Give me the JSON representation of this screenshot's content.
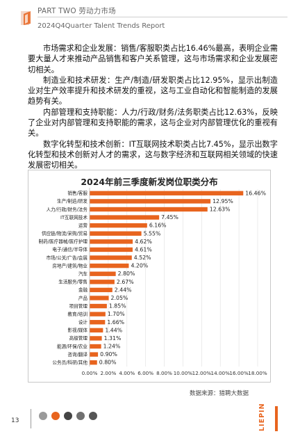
{
  "header": {
    "line1": "PART TWO 劳动力市场",
    "line2": "2024Q4Quarter Talent Trends Report"
  },
  "paragraphs": [
    "市场需求和企业发展：销售/客服职类占比16.46%最高，表明企业需要大量人才来推动产品销售和客户关系管理，这与市场需求和企业发展密切相关。",
    "制造业和技术研发：生产/制造/研发职类占比12.95%，显示出制造业对生产效率提升和技术研发的重视，这与工业自动化和智能制造的发展趋势有关。",
    "内部管理和支持职能：人力/行政/财务/法务职类占比12.63%，反映了企业对内部管理和支持职能的需求，这与企业对内部管理优化的重视有关。",
    "数字化转型和技术创新：IT互联网技术职类占比7.45%，显示出数字化转型和技术创新对人才的需求，这与数字经济和互联网相关领域的快速发展密切相关。"
  ],
  "chart_data": {
    "type": "bar",
    "orientation": "horizontal",
    "title": "2024年前三季度新发岗位职类分布",
    "categories": [
      "销售/客服",
      "生产/制造/研发",
      "人力/行政/财务/法务",
      "IT互联网技术",
      "运营",
      "供应链/物流/采购/贸易",
      "制药/医疗器械/医疗护理",
      "电子/通信/半导体",
      "市场/公关/广告/会展",
      "房地产/建筑/物业",
      "汽车",
      "生活服务/零售",
      "金融",
      "产品",
      "项目管理",
      "教育/培训",
      "设计",
      "影视/媒体",
      "高级管理",
      "能源/环保/农业",
      "咨询/翻译",
      "公务员/科研/其他"
    ],
    "values": [
      16.46,
      12.95,
      12.63,
      7.45,
      6.16,
      5.55,
      4.62,
      4.61,
      4.52,
      4.2,
      2.8,
      2.67,
      2.44,
      2.05,
      1.85,
      1.7,
      1.66,
      1.44,
      1.31,
      1.24,
      0.9,
      0.8
    ],
    "labels": [
      "16.46%",
      "12.95%",
      "12.63%",
      "7.45%",
      "6.16%",
      "5.55%",
      "4.62%",
      "4.61%",
      "4.52%",
      "4.20%",
      "2.80%",
      "2.67%",
      "2.44%",
      "2.05%",
      "1.85%",
      "1.70%",
      "1.66%",
      "1.44%",
      "1.31%",
      "1.24%",
      "0.90%",
      "0.80%"
    ],
    "xlim": [
      0,
      18
    ],
    "xticks": [
      "0.00%",
      "2.00%",
      "4.00%",
      "6.00%",
      "8.00%",
      "10.00%",
      "12.00%",
      "14.00%",
      "16.00%",
      "18.00%"
    ],
    "grid": true,
    "bar_color": "#e8641e"
  },
  "source": "数据来源：猎聘大数据",
  "footer": {
    "page": "13",
    "brand": "LIEPIN",
    "dot_colors": [
      "#9a9a9a",
      "#e8641e",
      "#444444",
      "#707070",
      "#555555"
    ]
  }
}
